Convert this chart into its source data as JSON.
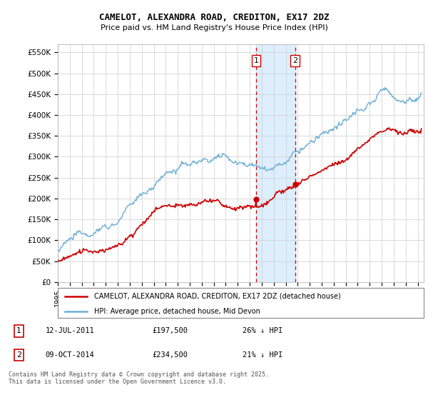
{
  "title": "CAMELOT, ALEXANDRA ROAD, CREDITON, EX17 2DZ",
  "subtitle": "Price paid vs. HM Land Registry's House Price Index (HPI)",
  "ylabel_ticks": [
    "£0",
    "£50K",
    "£100K",
    "£150K",
    "£200K",
    "£250K",
    "£300K",
    "£350K",
    "£400K",
    "£450K",
    "£500K",
    "£550K"
  ],
  "ytick_values": [
    0,
    50000,
    100000,
    150000,
    200000,
    250000,
    300000,
    350000,
    400000,
    450000,
    500000,
    550000
  ],
  "ylim": [
    0,
    570000
  ],
  "xlim_start": 1995.0,
  "xlim_end": 2025.5,
  "hpi_color": "#6baed6",
  "price_color": "#cc0000",
  "shade_color": "#ddeeff",
  "marker1_date": 2011.53,
  "marker2_date": 2014.77,
  "marker1_price": 197500,
  "marker2_price": 234500,
  "legend_property": "CAMELOT, ALEXANDRA ROAD, CREDITON, EX17 2DZ (detached house)",
  "legend_hpi": "HPI: Average price, detached house, Mid Devon",
  "footer": "Contains HM Land Registry data © Crown copyright and database right 2025.\nThis data is licensed under the Open Government Licence v3.0.",
  "background_color": "#ffffff",
  "grid_color": "#cccccc",
  "title_fontsize": 9,
  "subtitle_fontsize": 8
}
